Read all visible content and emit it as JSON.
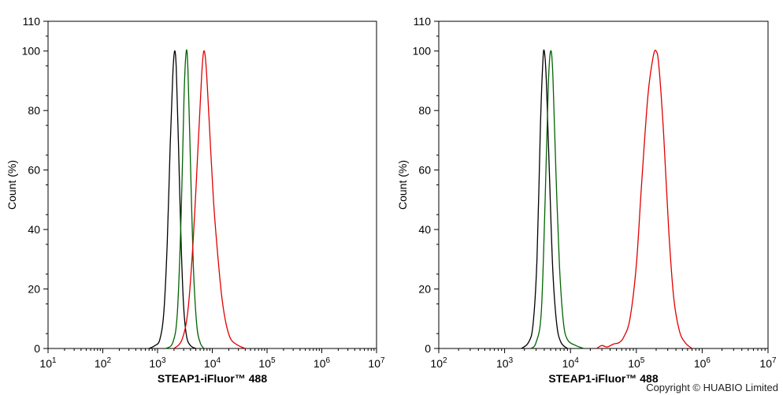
{
  "chart_data": [
    {
      "type": "line",
      "xscale": "log",
      "xlim": [
        10,
        10000000
      ],
      "xticks": [
        "10",
        "100",
        "1000",
        "10000",
        "100000",
        "1000000",
        "10000000"
      ],
      "x_tick_labels": [
        {
          "base": "10",
          "exp": "1"
        },
        {
          "base": "10",
          "exp": "2"
        },
        {
          "base": "10",
          "exp": "3"
        },
        {
          "base": "10",
          "exp": "4"
        },
        {
          "base": "10",
          "exp": "5"
        },
        {
          "base": "10",
          "exp": "6"
        },
        {
          "base": "10",
          "exp": "7"
        }
      ],
      "ylim": [
        0,
        110
      ],
      "yticks": [
        "0",
        "20",
        "40",
        "60",
        "80",
        "100",
        "110"
      ],
      "ylabel": "Count  (%)",
      "xlabel": "STEAP1-iFluor™ 488",
      "grid": false,
      "series": [
        {
          "color": "#000000",
          "points": [
            [
              700,
              0
            ],
            [
              900,
              1
            ],
            [
              1100,
              3
            ],
            [
              1300,
              12
            ],
            [
              1500,
              35
            ],
            [
              1700,
              68
            ],
            [
              1900,
              92
            ],
            [
              2050,
              100
            ],
            [
              2200,
              94
            ],
            [
              2400,
              70
            ],
            [
              2700,
              35
            ],
            [
              3000,
              14
            ],
            [
              3400,
              4
            ],
            [
              4000,
              1
            ],
            [
              5000,
              0
            ]
          ]
        },
        {
          "color": "#006400",
          "points": [
            [
              1400,
              0
            ],
            [
              1900,
              2
            ],
            [
              2300,
              12
            ],
            [
              2700,
              45
            ],
            [
              3050,
              85
            ],
            [
              3350,
              100
            ],
            [
              3600,
              93
            ],
            [
              4000,
              62
            ],
            [
              4500,
              28
            ],
            [
              5200,
              8
            ],
            [
              6000,
              2
            ],
            [
              7000,
              0
            ]
          ]
        },
        {
          "color": "#e00000",
          "points": [
            [
              2000,
              0
            ],
            [
              2800,
              3
            ],
            [
              3600,
              13
            ],
            [
              4500,
              37
            ],
            [
              5500,
              68
            ],
            [
              6400,
              92
            ],
            [
              7000,
              100
            ],
            [
              7700,
              95
            ],
            [
              8800,
              76
            ],
            [
              10500,
              50
            ],
            [
              12500,
              32
            ],
            [
              15000,
              17
            ],
            [
              18000,
              8
            ],
            [
              22000,
              3
            ],
            [
              30000,
              1
            ],
            [
              40000,
              0
            ]
          ]
        }
      ]
    },
    {
      "type": "line",
      "xscale": "log",
      "xlim": [
        100,
        10000000
      ],
      "xticks": [
        "100",
        "1000",
        "10000",
        "100000",
        "1000000",
        "10000000"
      ],
      "x_tick_labels": [
        {
          "base": "10",
          "exp": "2"
        },
        {
          "base": "10",
          "exp": "3"
        },
        {
          "base": "10",
          "exp": "4"
        },
        {
          "base": "10",
          "exp": "5"
        },
        {
          "base": "10",
          "exp": "6"
        },
        {
          "base": "10",
          "exp": "7"
        }
      ],
      "ylim": [
        0,
        110
      ],
      "yticks": [
        "0",
        "20",
        "40",
        "60",
        "80",
        "100",
        "110"
      ],
      "ylabel": "Count  (%)",
      "xlabel": "STEAP1-iFluor™ 488",
      "grid": false,
      "series": [
        {
          "color": "#000000",
          "points": [
            [
              1800,
              0
            ],
            [
              2300,
              2
            ],
            [
              2700,
              8
            ],
            [
              3100,
              30
            ],
            [
              3500,
              75
            ],
            [
              3800,
              96
            ],
            [
              4000,
              100
            ],
            [
              4300,
              90
            ],
            [
              4800,
              58
            ],
            [
              5400,
              26
            ],
            [
              6200,
              8
            ],
            [
              7200,
              2
            ],
            [
              9000,
              0
            ]
          ]
        },
        {
          "color": "#006400",
          "points": [
            [
              2500,
              0
            ],
            [
              3000,
              2
            ],
            [
              3600,
              12
            ],
            [
              4100,
              48
            ],
            [
              4600,
              88
            ],
            [
              5000,
              100
            ],
            [
              5400,
              92
            ],
            [
              6000,
              60
            ],
            [
              6800,
              28
            ],
            [
              7800,
              9
            ],
            [
              9000,
              3
            ],
            [
              12000,
              1
            ],
            [
              16000,
              0
            ]
          ]
        },
        {
          "color": "#e00000",
          "points": [
            [
              25000,
              0
            ],
            [
              30000,
              1
            ],
            [
              36000,
              0.5
            ],
            [
              45000,
              1.5
            ],
            [
              55000,
              2
            ],
            [
              65000,
              4
            ],
            [
              80000,
              10
            ],
            [
              100000,
              28
            ],
            [
              120000,
              55
            ],
            [
              150000,
              85
            ],
            [
              180000,
              98
            ],
            [
              200000,
              100
            ],
            [
              220000,
              95
            ],
            [
              260000,
              72
            ],
            [
              310000,
              40
            ],
            [
              370000,
              17
            ],
            [
              450000,
              6
            ],
            [
              550000,
              2
            ],
            [
              700000,
              0
            ]
          ]
        }
      ]
    }
  ],
  "copyright": "Copyright © HUABIO Limited"
}
